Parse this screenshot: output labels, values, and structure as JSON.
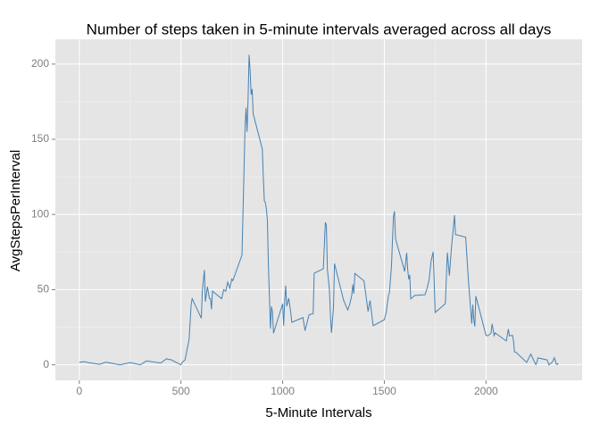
{
  "chart_data": {
    "type": "line",
    "title": "Number of steps taken in 5-minute intervals averaged across all days",
    "x_label": "5-Minute Intervals",
    "y_label": "AvgStepsPerInterval",
    "x": [
      0,
      25,
      45,
      100,
      130,
      200,
      250,
      300,
      330,
      400,
      430,
      440,
      450,
      500,
      505,
      520,
      540,
      550,
      555,
      600,
      605,
      615,
      620,
      630,
      640,
      645,
      650,
      655,
      700,
      710,
      720,
      730,
      740,
      750,
      755,
      800,
      810,
      815,
      820,
      825,
      830,
      835,
      840,
      845,
      850,
      855,
      900,
      905,
      910,
      915,
      920,
      925,
      930,
      935,
      940,
      945,
      950,
      955,
      1000,
      1005,
      1010,
      1015,
      1020,
      1030,
      1040,
      1045,
      1100,
      1110,
      1115,
      1130,
      1150,
      1155,
      1200,
      1210,
      1215,
      1220,
      1230,
      1235,
      1240,
      1250,
      1255,
      1300,
      1320,
      1330,
      1340,
      1345,
      1350,
      1355,
      1400,
      1420,
      1430,
      1445,
      1500,
      1510,
      1520,
      1525,
      1535,
      1540,
      1545,
      1550,
      1555,
      1600,
      1610,
      1615,
      1620,
      1625,
      1630,
      1650,
      1700,
      1710,
      1720,
      1730,
      1740,
      1745,
      1750,
      1800,
      1810,
      1820,
      1830,
      1845,
      1850,
      1900,
      1915,
      1930,
      1935,
      1940,
      1945,
      1950,
      2000,
      2010,
      2025,
      2030,
      2040,
      2045,
      2055,
      2100,
      2110,
      2115,
      2130,
      2135,
      2140,
      2150,
      2200,
      2220,
      2245,
      2250,
      2255,
      2300,
      2310,
      2315,
      2320,
      2330,
      2335,
      2340,
      2345,
      2350,
      2355
    ],
    "series": [
      {
        "name": "AvgStepsPerInterval",
        "color": "#4682b4",
        "values": [
          1.7,
          2.1,
          1.5,
          0.3,
          1.8,
          0,
          1.5,
          0,
          2.6,
          1.2,
          4.1,
          3.5,
          3.5,
          0,
          1.6,
          3.3,
          17,
          40,
          44,
          31,
          49,
          63,
          42,
          52,
          44,
          44,
          37,
          49,
          44,
          50,
          49,
          55,
          51,
          57,
          56,
          73,
          129,
          158,
          171,
          155,
          177,
          206.2,
          195.9,
          179.6,
          183.4,
          167,
          143.5,
          124,
          109,
          108,
          103.7,
          95.9,
          66,
          45,
          24,
          38.8,
          35,
          21,
          40.6,
          26,
          42.4,
          52.7,
          38.9,
          44.3,
          34.5,
          28.3,
          31.4,
          22.7,
          25.5,
          33.3,
          34.1,
          60.9,
          63.9,
          94.8,
          92.8,
          63.4,
          50,
          32.6,
          21.3,
          38,
          67.3,
          42.8,
          36.5,
          40.3,
          46.3,
          53.5,
          47.3,
          60.8,
          55.8,
          35.5,
          42.8,
          26,
          30,
          35.5,
          45.9,
          47.8,
          65.3,
          82.9,
          98.7,
          102.1,
          83.9,
          62.1,
          74.5,
          63.2,
          56.9,
          59.8,
          43.9,
          46.2,
          46.6,
          50.7,
          56.5,
          68.9,
          75.1,
          56.5,
          34.8,
          40.7,
          74.7,
          59.3,
          77.8,
          99.5,
          86.6,
          84.9,
          53.4,
          27.4,
          40,
          30.2,
          25.5,
          45.7,
          19.6,
          19.3,
          21.2,
          27.3,
          19.5,
          21.3,
          20.2,
          15.9,
          23.8,
          19.3,
          19.6,
          16.3,
          8.7,
          8.1,
          1.6,
          7.1,
          0.2,
          1.6,
          4.6,
          3.3,
          0,
          0.8,
          1,
          2.6,
          4.7,
          3.3,
          0.6,
          0.2,
          1.1
        ]
      }
    ],
    "xlim": [
      -117.75,
      2472.75
    ],
    "xticks": [
      0,
      500,
      1000,
      1500,
      2000
    ],
    "ylim": [
      -10.3,
      216.5
    ],
    "yticks": [
      0,
      50,
      100,
      150,
      200
    ],
    "grid": true
  }
}
